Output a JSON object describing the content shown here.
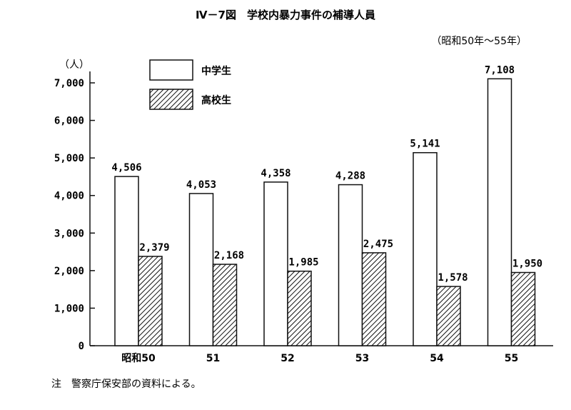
{
  "chart_data": {
    "type": "bar",
    "title": "Ⅳ－7図　学校内暴力事件の補導人員",
    "subtitle": "（昭和50年～55年）",
    "ylabel": "（人）",
    "xlabel": "",
    "ylim": [
      0,
      7000
    ],
    "yticks": [
      "0",
      "1,000",
      "2,000",
      "3,000",
      "4,000",
      "5,000",
      "6,000",
      "7,000"
    ],
    "grid": false,
    "legend_position": "top-left",
    "categories": [
      "昭和50",
      "51",
      "52",
      "53",
      "54",
      "55"
    ],
    "series": [
      {
        "name": "中学生",
        "pattern": "white",
        "values": [
          4506,
          4053,
          4358,
          4288,
          5141,
          7108
        ],
        "labels": [
          "4,506",
          "4,053",
          "4,358",
          "4,288",
          "5,141",
          "7,108"
        ]
      },
      {
        "name": "高校生",
        "pattern": "hatched",
        "values": [
          2379,
          2168,
          1985,
          2475,
          1578,
          1950
        ],
        "labels": [
          "2,379",
          "2,168",
          "1,985",
          "2,475",
          "1,578",
          "1,950"
        ]
      }
    ],
    "note": "注　警察庁保安部の資料による。"
  },
  "colors": {
    "ink": "#111111",
    "background": "#ffffff"
  }
}
